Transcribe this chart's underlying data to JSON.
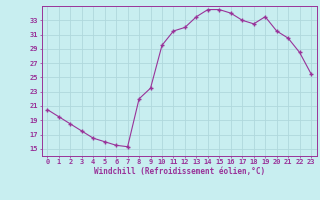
{
  "x": [
    0,
    1,
    2,
    3,
    4,
    5,
    6,
    7,
    8,
    9,
    10,
    11,
    12,
    13,
    14,
    15,
    16,
    17,
    18,
    19,
    20,
    21,
    22,
    23
  ],
  "y": [
    20.5,
    19.5,
    18.5,
    17.5,
    16.5,
    16.0,
    15.5,
    15.3,
    22.0,
    23.5,
    29.5,
    31.5,
    32.0,
    33.5,
    34.5,
    34.5,
    34.0,
    33.0,
    32.5,
    33.5,
    31.5,
    30.5,
    28.5,
    25.5
  ],
  "line_color": "#993399",
  "marker": "+",
  "background_color": "#c8eef0",
  "grid_color": "#b0d8dc",
  "xlabel": "Windchill (Refroidissement éolien,°C)",
  "yticks": [
    15,
    17,
    19,
    21,
    23,
    25,
    27,
    29,
    31,
    33
  ],
  "xlim": [
    -0.5,
    23.5
  ],
  "ylim": [
    14.0,
    35.0
  ],
  "tick_color": "#993399",
  "label_color": "#993399",
  "font": "monospace",
  "tick_fontsize": 5.0,
  "xlabel_fontsize": 5.5
}
